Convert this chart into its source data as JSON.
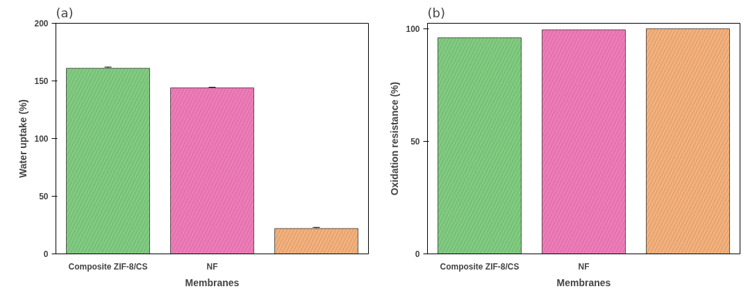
{
  "chart_data": [
    {
      "type": "bar",
      "title": "(a)",
      "xlabel": "Membranes",
      "ylabel": "Water uptake (%)",
      "categories": [
        "Composite ZIF-8/CS",
        "NF",
        null
      ],
      "values": [
        161,
        144,
        22
      ],
      "errors": [
        1,
        0.5,
        1
      ],
      "colors": [
        "#7fcc7f",
        "#f07ab8",
        "#f5b07a"
      ],
      "ylim": [
        0,
        200
      ],
      "yticks": [
        0,
        50,
        100,
        150,
        200
      ]
    },
    {
      "type": "bar",
      "title": "(b)",
      "xlabel": "Membranes",
      "ylabel": "Oxidation resistance (%)",
      "categories": [
        "Composite ZIF-8/CS",
        "NF",
        null
      ],
      "values": [
        96,
        99.5,
        100
      ],
      "colors": [
        "#7fcc7f",
        "#f07ab8",
        "#f5b07a"
      ],
      "ylim": [
        0,
        102.4
      ],
      "yticks": [
        0,
        50,
        100
      ]
    }
  ]
}
